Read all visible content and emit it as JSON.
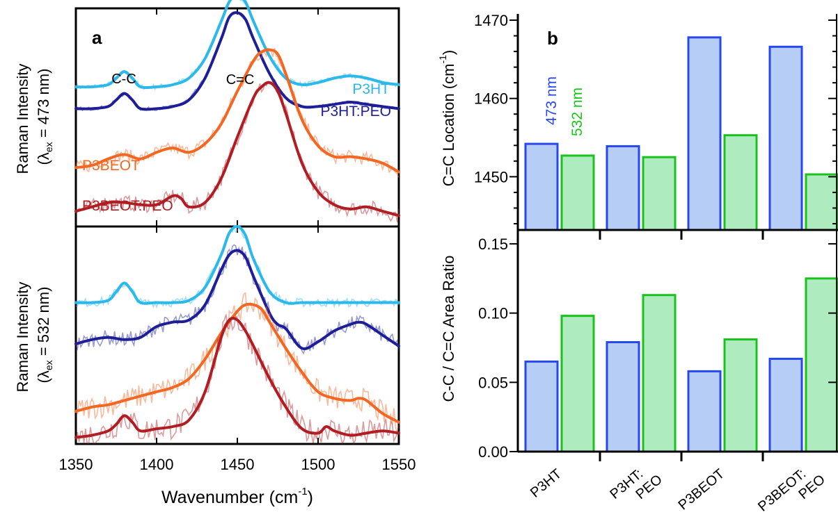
{
  "figure": {
    "panel_a": {
      "label": "a",
      "x_axis": {
        "label_main": "Wavenumber (cm",
        "label_sup": "-1",
        "label_close": ")",
        "range": [
          1350,
          1550
        ],
        "ticks": [
          1350,
          1400,
          1450,
          1500,
          1550
        ]
      },
      "top_ylabel": {
        "line1": "Raman Intensity",
        "lambda": "(λ",
        "sub": "ex",
        "rest": " = 473 nm)"
      },
      "bottom_ylabel": {
        "line1": "Raman Intensity",
        "lambda": "(λ",
        "sub": "ex",
        "rest": " = 532 nm)"
      },
      "annotations": {
        "cc": "C-C",
        "ceqc": "C=C"
      },
      "series_labels": {
        "p3ht": "P3HT",
        "p3ht_peo": "P3HT:PEO",
        "p3beot": "P3BEOT",
        "p3beot_peo": "P3BEOT:PEO"
      }
    },
    "panel_b": {
      "label": "b",
      "wavelength_labels": {
        "blue": "473 nm",
        "green": "532 nm"
      },
      "top_ylabel": {
        "main": "C=C Location (cm",
        "sup": "-1",
        "close": ")"
      },
      "bottom_ylabel": "C-C / C=C Area Ratio",
      "top_ticks": [
        "1450",
        "1460",
        "1470"
      ],
      "bottom_ticks": [
        "0.00",
        "0.05",
        "0.10",
        "0.15"
      ],
      "categories": [
        [
          "P3HT"
        ],
        [
          "P3HT:",
          "PEO"
        ],
        [
          "P3BEOT"
        ],
        [
          "P3BEOT:",
          "PEO"
        ]
      ]
    }
  },
  "colors": {
    "p3ht": "#2bb8ea",
    "p3ht_peo": "#1e1e96",
    "p3beot": "#f26722",
    "p3beot_peo": "#b01e23",
    "bar_blue_fill": "#b6cdf5",
    "bar_blue_edge": "#2748ee",
    "bar_green_fill": "#aeebbf",
    "bar_green_edge": "#18c41c"
  },
  "chart_data": [
    {
      "type": "line",
      "title": "",
      "xlabel": "Wavenumber (cm-1)",
      "ylabel": "Raman Intensity (λex = 473 nm)",
      "xlim": [
        1350,
        1550
      ],
      "grid": false,
      "series": [
        {
          "name": "P3HT",
          "color": "#2bb8ea",
          "x": [
            1350,
            1360,
            1370,
            1375,
            1380,
            1385,
            1390,
            1400,
            1410,
            1420,
            1430,
            1440,
            1445,
            1450,
            1455,
            1460,
            1470,
            1480,
            1490,
            1500,
            1510,
            1520,
            1530,
            1540,
            1550
          ],
          "y": [
            0.64,
            0.64,
            0.65,
            0.68,
            0.71,
            0.68,
            0.64,
            0.64,
            0.65,
            0.68,
            0.77,
            0.94,
            1.03,
            1.06,
            1.03,
            0.94,
            0.78,
            0.68,
            0.65,
            0.66,
            0.68,
            0.69,
            0.68,
            0.66,
            0.65
          ]
        },
        {
          "name": "P3HT:PEO",
          "color": "#1e1e96",
          "x": [
            1350,
            1360,
            1370,
            1375,
            1380,
            1385,
            1390,
            1400,
            1410,
            1420,
            1430,
            1440,
            1445,
            1450,
            1455,
            1460,
            1470,
            1480,
            1490,
            1500,
            1510,
            1520,
            1530,
            1540,
            1550
          ],
          "y": [
            0.54,
            0.54,
            0.55,
            0.58,
            0.61,
            0.58,
            0.54,
            0.54,
            0.55,
            0.58,
            0.68,
            0.86,
            0.96,
            0.98,
            0.95,
            0.86,
            0.7,
            0.59,
            0.55,
            0.55,
            0.56,
            0.57,
            0.56,
            0.55,
            0.54
          ]
        },
        {
          "name": "P3BEOT",
          "color": "#f26722",
          "x": [
            1350,
            1360,
            1370,
            1380,
            1390,
            1400,
            1410,
            1420,
            1430,
            1440,
            1450,
            1460,
            1465,
            1470,
            1475,
            1480,
            1490,
            1500,
            1510,
            1520,
            1530,
            1540,
            1550
          ],
          "y": [
            0.27,
            0.28,
            0.31,
            0.33,
            0.31,
            0.34,
            0.36,
            0.34,
            0.38,
            0.47,
            0.62,
            0.76,
            0.8,
            0.81,
            0.79,
            0.7,
            0.49,
            0.37,
            0.32,
            0.32,
            0.31,
            0.29,
            0.25
          ]
        },
        {
          "name": "P3BEOT:PEO",
          "color": "#b01e23",
          "x": [
            1350,
            1360,
            1370,
            1380,
            1390,
            1400,
            1410,
            1415,
            1420,
            1430,
            1440,
            1450,
            1460,
            1465,
            1470,
            1475,
            1480,
            1490,
            1500,
            1510,
            1520,
            1530,
            1540,
            1550
          ],
          "y": [
            0.07,
            0.09,
            0.11,
            0.11,
            0.1,
            0.1,
            0.14,
            0.13,
            0.09,
            0.11,
            0.22,
            0.41,
            0.59,
            0.64,
            0.66,
            0.62,
            0.52,
            0.29,
            0.16,
            0.1,
            0.08,
            0.09,
            0.07,
            0.05
          ]
        }
      ]
    },
    {
      "type": "line",
      "title": "",
      "xlabel": "Wavenumber (cm-1)",
      "ylabel": "Raman Intensity (λex = 532 nm)",
      "xlim": [
        1350,
        1550
      ],
      "grid": false,
      "series": [
        {
          "name": "P3HT",
          "color": "#2bb8ea",
          "x": [
            1350,
            1360,
            1370,
            1375,
            1380,
            1385,
            1390,
            1400,
            1410,
            1420,
            1430,
            1440,
            1445,
            1450,
            1455,
            1460,
            1470,
            1480,
            1490,
            1500,
            1510,
            1520,
            1530,
            1540,
            1550
          ],
          "y": [
            0.65,
            0.65,
            0.66,
            0.7,
            0.74,
            0.7,
            0.65,
            0.65,
            0.65,
            0.66,
            0.72,
            0.87,
            0.97,
            1.0,
            0.96,
            0.85,
            0.7,
            0.65,
            0.65,
            0.65,
            0.65,
            0.65,
            0.65,
            0.65,
            0.65
          ]
        },
        {
          "name": "P3HT:PEO",
          "color": "#1e1e96",
          "x": [
            1350,
            1360,
            1370,
            1380,
            1390,
            1400,
            1410,
            1420,
            1430,
            1440,
            1445,
            1450,
            1455,
            1460,
            1470,
            1475,
            1480,
            1490,
            1500,
            1510,
            1520,
            1525,
            1530,
            1540,
            1550
          ],
          "y": [
            0.46,
            0.48,
            0.49,
            0.48,
            0.49,
            0.54,
            0.56,
            0.57,
            0.64,
            0.8,
            0.87,
            0.89,
            0.86,
            0.77,
            0.6,
            0.55,
            0.53,
            0.44,
            0.47,
            0.52,
            0.55,
            0.56,
            0.55,
            0.5,
            0.45
          ]
        },
        {
          "name": "P3BEOT",
          "color": "#f26722",
          "x": [
            1350,
            1360,
            1370,
            1380,
            1390,
            1400,
            1410,
            1420,
            1430,
            1440,
            1450,
            1455,
            1460,
            1465,
            1470,
            1480,
            1490,
            1500,
            1510,
            1520,
            1525,
            1530,
            1540,
            1550
          ],
          "y": [
            0.15,
            0.17,
            0.18,
            0.2,
            0.22,
            0.24,
            0.26,
            0.3,
            0.39,
            0.51,
            0.61,
            0.64,
            0.64,
            0.62,
            0.56,
            0.44,
            0.33,
            0.24,
            0.21,
            0.2,
            0.21,
            0.2,
            0.14,
            0.1
          ]
        },
        {
          "name": "P3BEOT:PEO",
          "color": "#b01e23",
          "x": [
            1350,
            1360,
            1370,
            1375,
            1380,
            1385,
            1390,
            1400,
            1410,
            1420,
            1430,
            1440,
            1445,
            1450,
            1455,
            1460,
            1470,
            1480,
            1490,
            1500,
            1505,
            1510,
            1520,
            1530,
            1540,
            1550
          ],
          "y": [
            0.03,
            0.04,
            0.06,
            0.09,
            0.13,
            0.1,
            0.06,
            0.07,
            0.08,
            0.11,
            0.24,
            0.49,
            0.57,
            0.57,
            0.52,
            0.45,
            0.3,
            0.17,
            0.07,
            0.05,
            0.08,
            0.06,
            0.04,
            0.05,
            0.06,
            0.05
          ]
        }
      ]
    },
    {
      "type": "bar",
      "title": "",
      "ylabel": "C=C Location (cm-1)",
      "categories": [
        "P3HT",
        "P3HT: PEO",
        "P3BEOT",
        "P3BEOT: PEO"
      ],
      "ylim": [
        1443.2,
        1470.8
      ],
      "yticks": [
        1450,
        1460,
        1470
      ],
      "series": [
        {
          "name": "473 nm",
          "values": [
            1454.2,
            1453.9,
            1467.8,
            1466.6
          ]
        },
        {
          "name": "532 nm",
          "values": [
            1452.7,
            1452.5,
            1455.3,
            1450.3
          ]
        }
      ]
    },
    {
      "type": "bar",
      "title": "",
      "ylabel": "C-C / C=C Area Ratio",
      "categories": [
        "P3HT",
        "P3HT: PEO",
        "P3BEOT",
        "P3BEOT: PEO"
      ],
      "ylim": [
        0,
        0.16
      ],
      "yticks": [
        0.0,
        0.05,
        0.1,
        0.15
      ],
      "series": [
        {
          "name": "473 nm",
          "values": [
            0.065,
            0.079,
            0.058,
            0.067
          ]
        },
        {
          "name": "532 nm",
          "values": [
            0.098,
            0.113,
            0.081,
            0.125
          ]
        }
      ]
    }
  ]
}
